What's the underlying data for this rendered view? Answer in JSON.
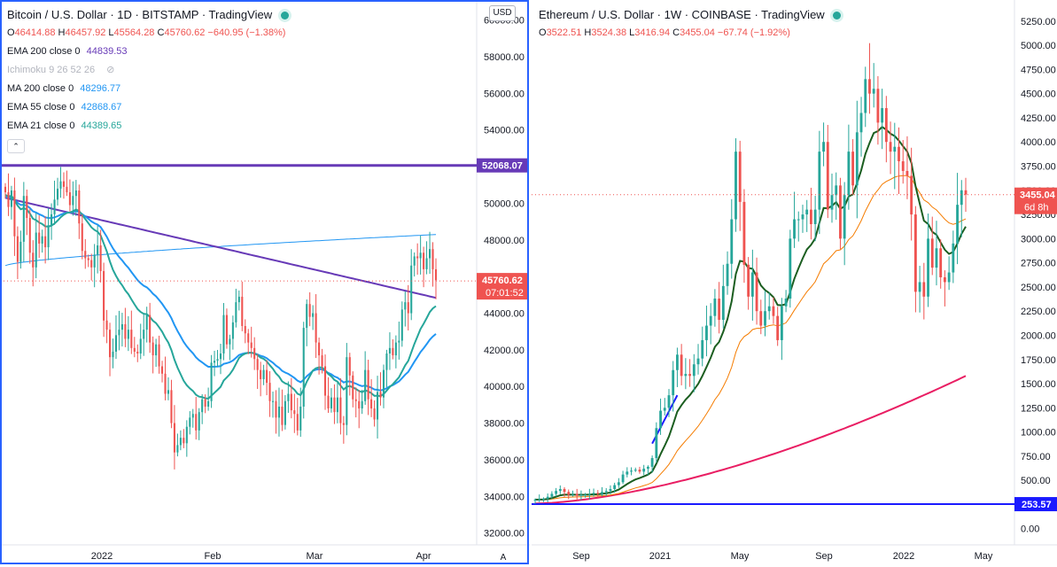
{
  "left": {
    "title": "Bitcoin / U.S. Dollar · 1D · BITSTAMP · TradingView",
    "ohlc": {
      "o": "46414.88",
      "h": "46457.92",
      "l": "45564.28",
      "c": "45760.62",
      "chg": "−640.95 (−1.38%)"
    },
    "indicators": [
      {
        "label": "EMA 200 close 0",
        "value": "44839.53",
        "color": "#673ab7"
      },
      {
        "label": "Ichimoku 9 26 52 26",
        "value": "",
        "color": "#b2b5be"
      },
      {
        "label": "MA 200 close 0",
        "value": "48296.77",
        "color": "#2196f3"
      },
      {
        "label": "EMA 55 close 0",
        "value": "42868.67",
        "color": "#2196f3"
      },
      {
        "label": "EMA 21 close 0",
        "value": "44389.65",
        "color": "#26a69a"
      }
    ],
    "collapse_glyph": "⌃",
    "currency": "USD",
    "price_tag": "45760.62",
    "countdown": "07:01:52",
    "level_line": "52068.07",
    "y_ticks": [
      "32000.00",
      "34000.00",
      "36000.00",
      "38000.00",
      "40000.00",
      "42000.00",
      "44000.00",
      "46000.00",
      "48000.00",
      "50000.00",
      "52000.00",
      "54000.00",
      "56000.00",
      "58000.00",
      "60000.00"
    ],
    "x_ticks": [
      "2022",
      "Feb",
      "Mar",
      "Apr"
    ],
    "scale_mode": "A"
  },
  "right": {
    "title": "Ethereum / U.S. Dollar · 1W · COINBASE · TradingView",
    "ohlc": {
      "o": "3522.51",
      "h": "3524.38",
      "l": "3416.94",
      "c": "3455.04",
      "chg": "−67.74 (−1.92%)"
    },
    "price_tag": "3455.04",
    "countdown": "6d 8h",
    "level_line": "253.57",
    "y_ticks": [
      "0.00",
      "250.00",
      "500.00",
      "750.00",
      "1000.00",
      "1250.00",
      "1500.00",
      "1750.00",
      "2000.00",
      "2250.00",
      "2500.00",
      "2750.00",
      "3000.00",
      "3250.00",
      "3500.00",
      "3750.00",
      "4000.00",
      "4250.00",
      "4500.00",
      "4750.00",
      "5000.00",
      "5250.00"
    ],
    "x_ticks": [
      "Sep",
      "2021",
      "May",
      "Sep",
      "2022",
      "May"
    ]
  },
  "colors": {
    "up": "#26a69a",
    "down": "#ef5350",
    "accent": "#2962ff",
    "level_left": "#673ab7",
    "level_right": "#1a1aff"
  },
  "chart_data": [
    {
      "type": "candlestick",
      "title": "Bitcoin / U.S. Dollar · 1D · BITSTAMP",
      "ylim": [
        31500,
        61000
      ],
      "x_ticks": [
        "2022",
        "Feb",
        "Mar",
        "Apr"
      ],
      "closes": [
        50600,
        49800,
        50700,
        48200,
        46800,
        47900,
        50400,
        49200,
        47300,
        46500,
        48400,
        47800,
        48200,
        47600,
        48800,
        49400,
        50200,
        50800,
        51200,
        50900,
        50600,
        49900,
        50400,
        50700,
        48900,
        47400,
        47000,
        46900,
        46500,
        47200,
        47700,
        46300,
        43600,
        43100,
        41600,
        41900,
        42800,
        43100,
        43400,
        42600,
        43100,
        42100,
        41900,
        41800,
        42600,
        43100,
        43900,
        42400,
        41700,
        42300,
        41100,
        40700,
        39600,
        39800,
        38000,
        36400,
        36800,
        37200,
        36900,
        37800,
        38300,
        38500,
        37600,
        38600,
        39300,
        38900,
        39200,
        41300,
        41400,
        41500,
        41800,
        43900,
        42300,
        42600,
        43500,
        44600,
        44900,
        43300,
        42900,
        42400,
        42100,
        41500,
        40900,
        40400,
        40900,
        40200,
        39200,
        39200,
        38300,
        38900,
        37900,
        39200,
        39600,
        38700,
        38500,
        37600,
        38900,
        43200,
        44500,
        43800,
        44000,
        42400,
        41700,
        41100,
        39500,
        38800,
        39400,
        38600,
        39400,
        38000,
        37900,
        41600,
        40600,
        39300,
        39200,
        38800,
        39200,
        40900,
        39300,
        38800,
        38200,
        39700,
        39400,
        40900,
        41800,
        42100,
        41700,
        42400,
        42500,
        44200,
        44600,
        44000,
        46600,
        47100,
        47000,
        47300,
        46400,
        47000,
        47500,
        46400,
        45800
      ],
      "series": [
        {
          "name": "EMA 200 close 0",
          "last": 44839.53
        },
        {
          "name": "MA 200 close 0",
          "last": 48296.77
        },
        {
          "name": "EMA 55 close 0",
          "last": 42868.67
        },
        {
          "name": "EMA 21 close 0",
          "last": 44389.65
        }
      ],
      "last_close": 45760.62,
      "horizontal_level": 52068.07
    },
    {
      "type": "candlestick",
      "title": "Ethereum / U.S. Dollar · 1W · COINBASE",
      "ylim": [
        -140,
        5450
      ],
      "x_ticks": [
        "Sep",
        "2021",
        "May",
        "Sep",
        "2022",
        "May"
      ],
      "closes": [
        300,
        305,
        310,
        330,
        360,
        390,
        410,
        380,
        350,
        360,
        340,
        350,
        350,
        360,
        370,
        360,
        380,
        390,
        410,
        450,
        480,
        560,
        590,
        600,
        610,
        590,
        620,
        640,
        730,
        1040,
        1220,
        1250,
        1380,
        1640,
        1800,
        1580,
        1600,
        1580,
        1700,
        1760,
        1950,
        2100,
        2200,
        2380,
        2160,
        2510,
        2740,
        3200,
        3900,
        3380,
        2730,
        2400,
        2650,
        2250,
        2100,
        2250,
        2300,
        2200,
        1950,
        2300,
        2380,
        3000,
        3200,
        3200,
        3250,
        3300,
        3150,
        3300,
        3900,
        4000,
        3300,
        3450,
        3550,
        3000,
        3450,
        3900,
        3550,
        4100,
        4300,
        4650,
        4500,
        4550,
        4200,
        4350,
        4000,
        3900,
        3950,
        3800,
        3700,
        3650,
        3250,
        2450,
        2550,
        2400,
        3000,
        2700,
        2900,
        2600,
        2550,
        2650,
        2950,
        3350,
        3500,
        3455
      ],
      "series": [
        {
          "name": "Green MA"
        },
        {
          "name": "Orange MA"
        },
        {
          "name": "Red MA"
        }
      ],
      "last_close": 3455.04,
      "horizontal_level": 253.57
    }
  ]
}
